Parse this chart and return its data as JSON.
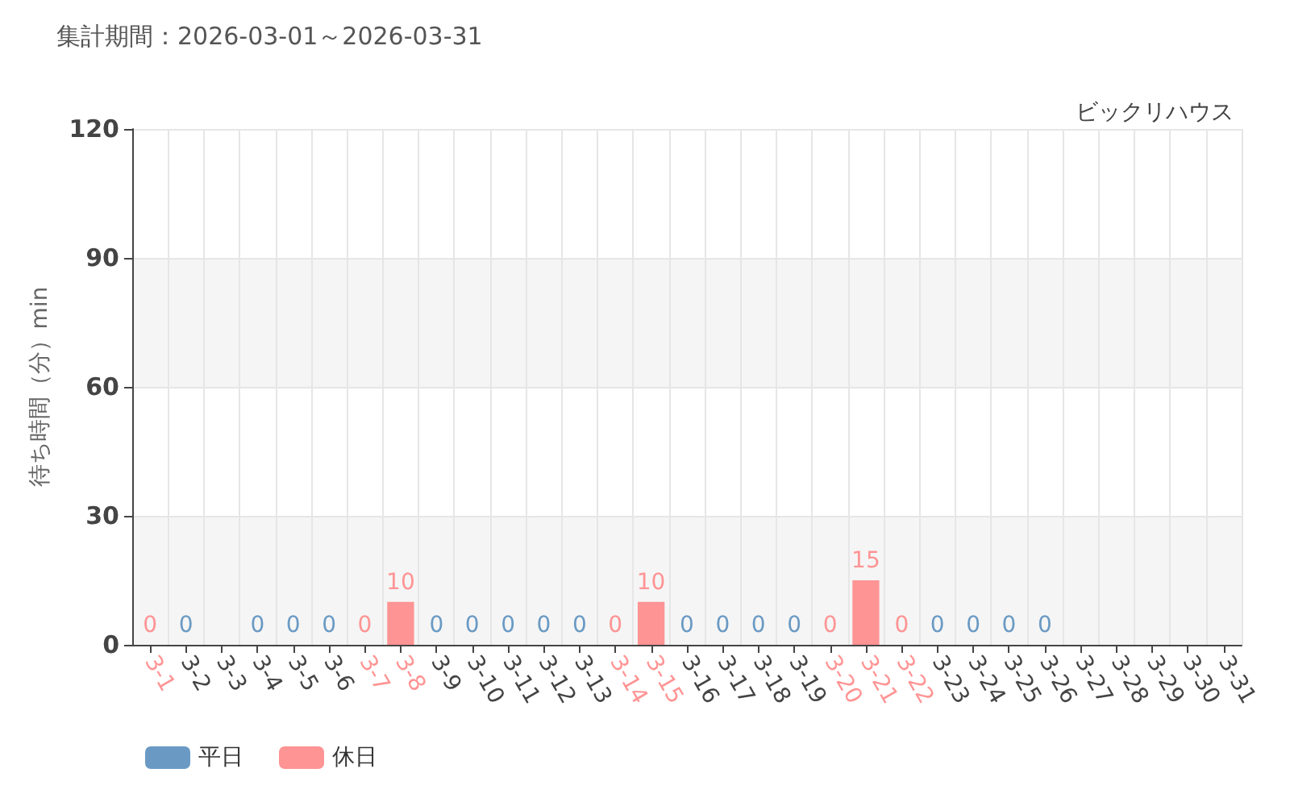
{
  "chart_data": {
    "type": "bar",
    "title": "集計期間：2026-03-01～2026-03-31",
    "subtitle": "ビックリハウス",
    "ylabel": "待ち時間（分）min",
    "categories": [
      "3-1",
      "3-2",
      "3-3",
      "3-4",
      "3-5",
      "3-6",
      "3-7",
      "3-8",
      "3-9",
      "3-10",
      "3-11",
      "3-12",
      "3-13",
      "3-14",
      "3-15",
      "3-16",
      "3-17",
      "3-18",
      "3-19",
      "3-20",
      "3-21",
      "3-22",
      "3-23",
      "3-24",
      "3-25",
      "3-26",
      "3-27",
      "3-28",
      "3-29",
      "3-30",
      "3-31"
    ],
    "series": [
      {
        "name": "平日",
        "color": "#6a9ac4",
        "values": [
          null,
          0,
          null,
          0,
          0,
          0,
          null,
          null,
          0,
          0,
          0,
          0,
          0,
          null,
          null,
          0,
          0,
          0,
          0,
          null,
          null,
          null,
          0,
          0,
          0,
          0,
          null,
          null,
          null,
          null,
          null
        ]
      },
      {
        "name": "休日",
        "color": "#ff9494",
        "values": [
          0,
          null,
          null,
          null,
          null,
          null,
          0,
          10,
          null,
          null,
          null,
          null,
          null,
          0,
          10,
          null,
          null,
          null,
          null,
          0,
          15,
          0,
          null,
          null,
          null,
          null,
          null,
          null,
          null,
          null,
          null
        ]
      }
    ],
    "ylim": [
      0,
      120
    ],
    "yticks": [
      0,
      30,
      60,
      90,
      120
    ],
    "grid": true,
    "legend": "bottom left",
    "data_labels": true
  }
}
